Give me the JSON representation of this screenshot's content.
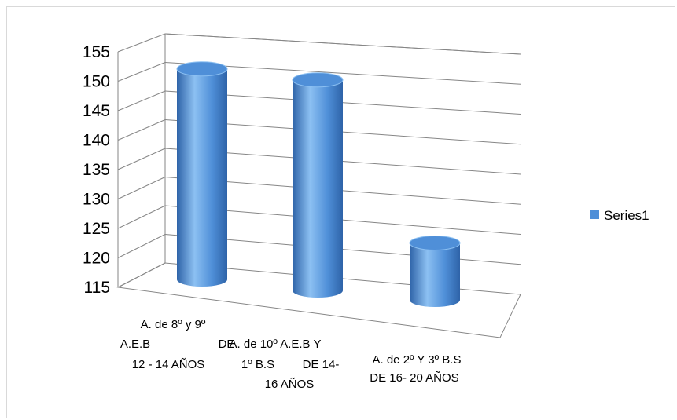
{
  "chart_data": {
    "type": "bar",
    "style": "3d-cylinder",
    "categories": [
      [
        "A. de  8º y 9º",
        "A.E.B",
        "DE",
        "12 - 14 AÑOS"
      ],
      [
        "A. de  10º A.E.B Y",
        "1º B.S",
        "DE 14-",
        "16 AÑOS"
      ],
      [
        "A.  de  2º Y 3º B.S",
        "DE 16- 20 AÑOS"
      ]
    ],
    "series": [
      {
        "name": "Series1",
        "values": [
          152,
          152,
          125
        ]
      }
    ],
    "ylim": [
      115,
      155
    ],
    "yticks": [
      115,
      120,
      125,
      130,
      135,
      140,
      145,
      150,
      155
    ],
    "grid": true,
    "legend_position": "right",
    "colors": {
      "bar_main": "#4f8fd8",
      "bar_light": "#8cc0f2",
      "bar_dark": "#2e63a8",
      "grid": "#868686",
      "legend_swatch": "#4f8fd8"
    }
  }
}
